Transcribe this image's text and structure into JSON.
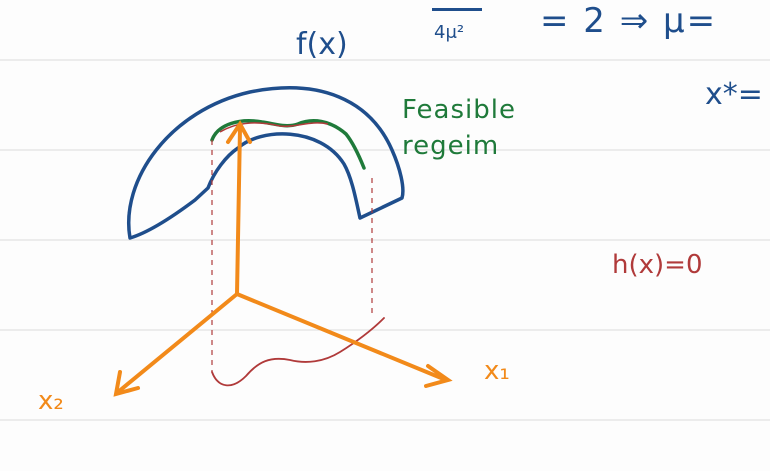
{
  "labels": {
    "equation_top": "= 2   ⇒   μ=",
    "fraction_denominator": "4μ²",
    "function_label": "f(x)",
    "x_star": "x*=",
    "feasible_region": "Feasible\nregeim",
    "constraint": "h(x)=0",
    "axis_x1": "x₁",
    "axis_x2": "x₂"
  },
  "colors": {
    "surface": "#1f4e8c",
    "feasible": "#1f7a3a",
    "axes": "#f28a1a",
    "constraint": "#b03a3a",
    "ruling": "#dcdcdc"
  }
}
